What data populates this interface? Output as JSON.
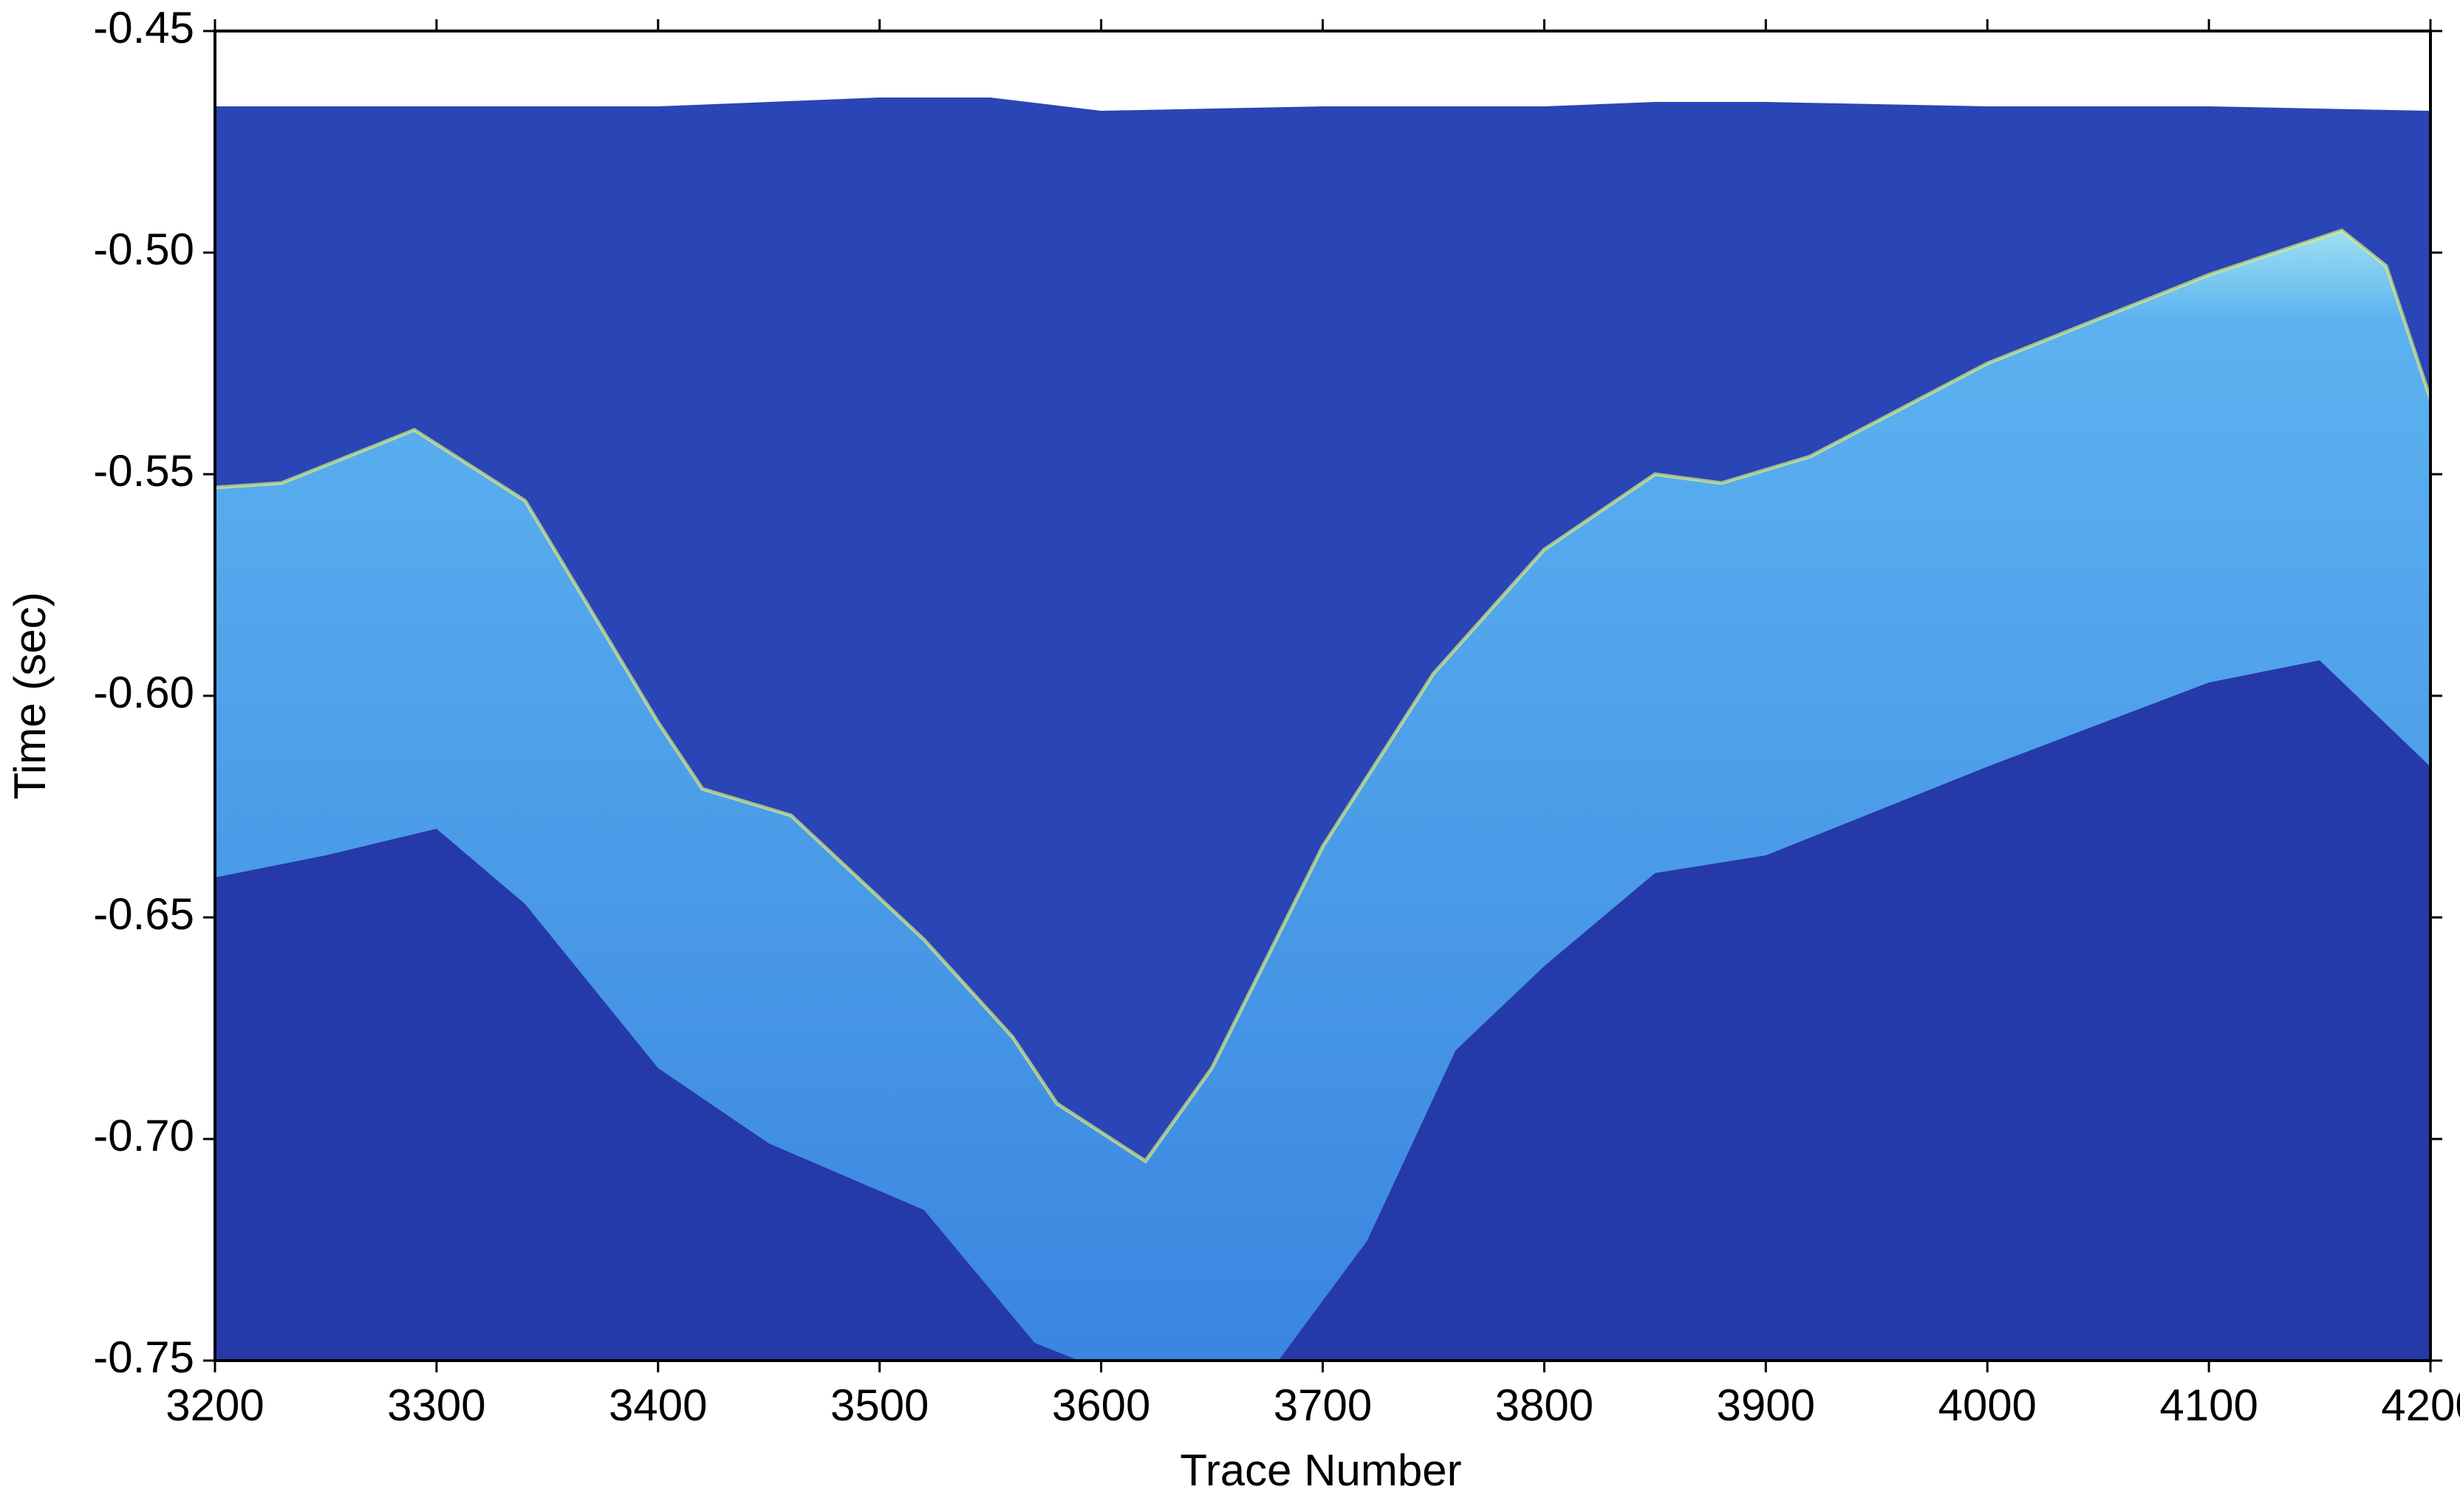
{
  "chart_data": {
    "type": "image",
    "xlabel": "Trace Number",
    "ylabel": "Time (sec)",
    "xlim": [
      3200,
      4200
    ],
    "ylim": [
      -0.45,
      -0.75
    ],
    "xticks": [
      3200,
      3300,
      3400,
      3500,
      3600,
      3700,
      3800,
      3900,
      4000,
      4100,
      4200
    ],
    "yticks": [
      -0.45,
      {
        "value": -0.5,
        "label": "-0.50"
      },
      -0.55,
      {
        "value": -0.6,
        "label": "-0.60"
      },
      -0.65,
      {
        "value": -0.7,
        "label": "-0.70"
      },
      -0.75
    ],
    "background": "#2639a8",
    "series": [
      {
        "color": "#ffffff",
        "x": [
          3200,
          3300,
          3400,
          3500,
          3550,
          3600,
          3700,
          3800,
          3850,
          3900,
          4000,
          4100,
          4200
        ],
        "values": [
          -0.467,
          -0.467,
          -0.467,
          -0.465,
          -0.465,
          -0.468,
          -0.467,
          -0.467,
          -0.466,
          -0.466,
          -0.467,
          -0.467,
          -0.468
        ]
      },
      {
        "color": "#3f92e6",
        "x": [
          3200,
          3230,
          3290,
          3340,
          3400,
          3420,
          3460,
          3520,
          3560,
          3580,
          3620,
          3650,
          3700,
          3750,
          3800,
          3850,
          3880,
          3920,
          4000,
          4100,
          4160,
          4180,
          4200
        ],
        "values": [
          -0.553,
          -0.552,
          -0.54,
          -0.556,
          -0.606,
          -0.621,
          -0.627,
          -0.655,
          -0.677,
          -0.692,
          -0.705,
          -0.684,
          -0.634,
          -0.595,
          -0.567,
          -0.55,
          -0.552,
          -0.546,
          -0.525,
          -0.505,
          -0.495,
          -0.503,
          -0.533
        ]
      },
      {
        "color": "#2639a8",
        "x": [
          3200,
          3250,
          3300,
          3340,
          3400,
          3450,
          3520,
          3570,
          3590,
          3680,
          3720,
          3760,
          3800,
          3850,
          3900,
          4000,
          4100,
          4150,
          4200
        ],
        "values": [
          -0.641,
          -0.636,
          -0.63,
          -0.647,
          -0.684,
          -0.701,
          -0.716,
          -0.746,
          -0.75,
          -0.75,
          -0.723,
          -0.68,
          -0.661,
          -0.64,
          -0.636,
          -0.616,
          -0.597,
          -0.592,
          -0.616
        ]
      }
    ]
  }
}
